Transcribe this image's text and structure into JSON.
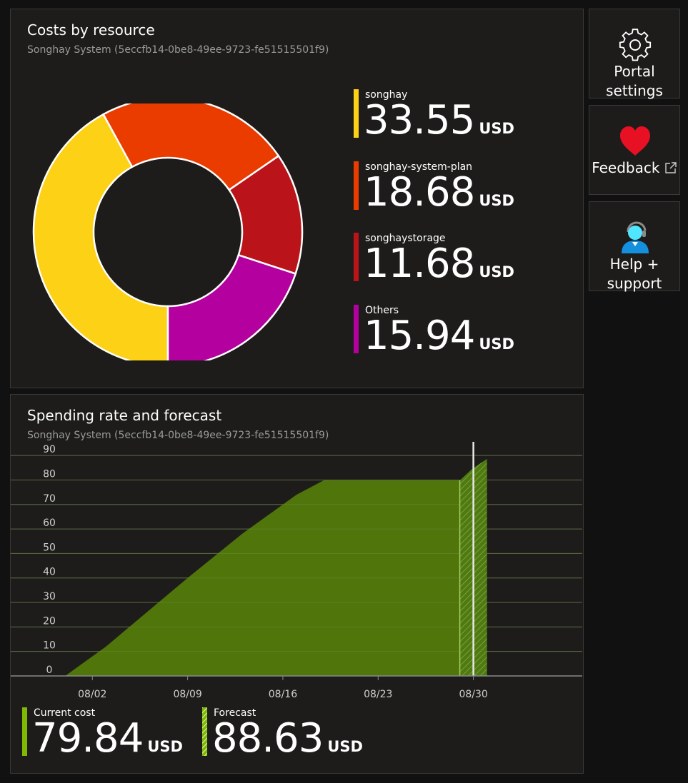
{
  "costs_by_resource": {
    "title": "Costs by resource",
    "subtitle": "Songhay System (5eccfb14-0be8-49ee-9723-fe51515501f9)",
    "unit": "USD",
    "items": [
      {
        "name": "songhay",
        "amount": "33.55",
        "color": "#fcd116"
      },
      {
        "name": "songhay-system-plan",
        "amount": "18.68",
        "color": "#eb3c00"
      },
      {
        "name": "songhaystorage",
        "amount": "11.68",
        "color": "#ba141a"
      },
      {
        "name": "Others",
        "amount": "15.94",
        "color": "#b4009e"
      }
    ]
  },
  "side_tiles": {
    "portal_settings": {
      "line1": "Portal",
      "line2": "settings",
      "icon": "gear-icon"
    },
    "feedback": {
      "label": "Feedback",
      "icon": "heart-icon",
      "external_icon": "external-link-icon"
    },
    "help_support": {
      "line1": "Help +",
      "line2": "support",
      "icon": "support-agent-icon"
    }
  },
  "spending_rate": {
    "title": "Spending rate and forecast",
    "subtitle": "Songhay System (5eccfb14-0be8-49ee-9723-fe51515501f9)",
    "unit": "USD",
    "current_cost": {
      "label": "Current cost",
      "amount": "79.84",
      "color": "#7fba00"
    },
    "forecast": {
      "label": "Forecast",
      "amount": "88.63",
      "color": "#a0d040"
    }
  },
  "chart_data": [
    {
      "type": "pie",
      "categories": [
        "songhay",
        "songhay-system-plan",
        "songhaystorage",
        "Others"
      ],
      "values": [
        33.55,
        18.68,
        11.68,
        15.94
      ],
      "colors": [
        "#fcd116",
        "#eb3c00",
        "#ba141a",
        "#b4009e"
      ]
    },
    {
      "type": "area",
      "yticks": [
        0,
        10,
        20,
        30,
        40,
        50,
        60,
        70,
        80,
        90
      ],
      "ylim": [
        0,
        95
      ],
      "xticks": [
        "08/02",
        "08/09",
        "08/16",
        "08/23",
        "08/30"
      ],
      "xtick_days": [
        2,
        9,
        16,
        23,
        30
      ],
      "xlim": [
        -4,
        38
      ],
      "series": [
        {
          "name": "Current cost",
          "x": [
            0,
            3,
            6,
            9,
            11,
            13,
            15,
            17,
            19,
            21,
            23,
            25,
            27,
            29
          ],
          "y": [
            0,
            12,
            26,
            40,
            49,
            58,
            66,
            74,
            79.84,
            79.84,
            79.84,
            79.84,
            79.84,
            79.84
          ]
        },
        {
          "name": "Forecast",
          "x": [
            29,
            29.9,
            31
          ],
          "y": [
            79.84,
            84.5,
            88.63
          ]
        }
      ],
      "today": 30,
      "grid": true
    }
  ]
}
